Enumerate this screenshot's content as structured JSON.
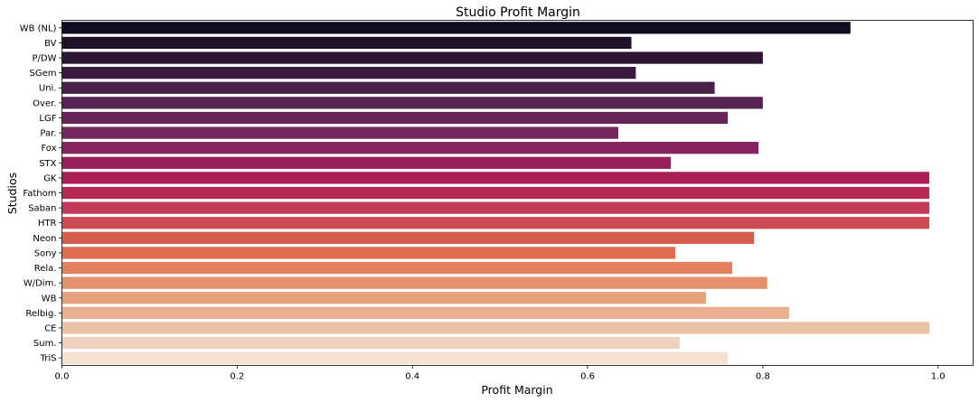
{
  "chart_data": {
    "type": "bar",
    "orientation": "horizontal",
    "title": "Studio Profit Margin",
    "xlabel": "Profit Margin",
    "ylabel": "Studios",
    "xlim": [
      0,
      1.04
    ],
    "xticks": [
      0.0,
      0.2,
      0.4,
      0.6,
      0.8,
      1.0
    ],
    "xtick_labels": [
      "0.0",
      "0.2",
      "0.4",
      "0.6",
      "0.8",
      "1.0"
    ],
    "grid": false,
    "legend": "none",
    "colormap": "rocket",
    "categories": [
      "WB (NL)",
      "BV",
      "P/DW",
      "SGem",
      "Uni.",
      "Over.",
      "LGF",
      "Par.",
      "Fox",
      "STX",
      "GK",
      "Fathom",
      "Saban",
      "HTR",
      "Neon",
      "Sony",
      "Rela.",
      "W/Dim.",
      "WB",
      "Relbig.",
      "CE",
      "Sum.",
      "TriS"
    ],
    "values": [
      0.9,
      0.65,
      0.8,
      0.655,
      0.745,
      0.8,
      0.76,
      0.635,
      0.795,
      0.695,
      0.99,
      0.99,
      0.99,
      0.99,
      0.79,
      0.7,
      0.765,
      0.805,
      0.735,
      0.83,
      0.99,
      0.705,
      0.76
    ],
    "colors": [
      "#100b1f",
      "#1e1128",
      "#2c1633",
      "#3a1a3f",
      "#48204a",
      "#572454",
      "#652658",
      "#73295e",
      "#85245e",
      "#98205a",
      "#aa1f55",
      "#b72a55",
      "#c23a57",
      "#cc4b52",
      "#d65c4c",
      "#de6c4f",
      "#e37f5f",
      "#e5906d",
      "#e6a07c",
      "#e8b08f",
      "#ebc1a3",
      "#efd1bd",
      "#f3e2d4"
    ]
  }
}
